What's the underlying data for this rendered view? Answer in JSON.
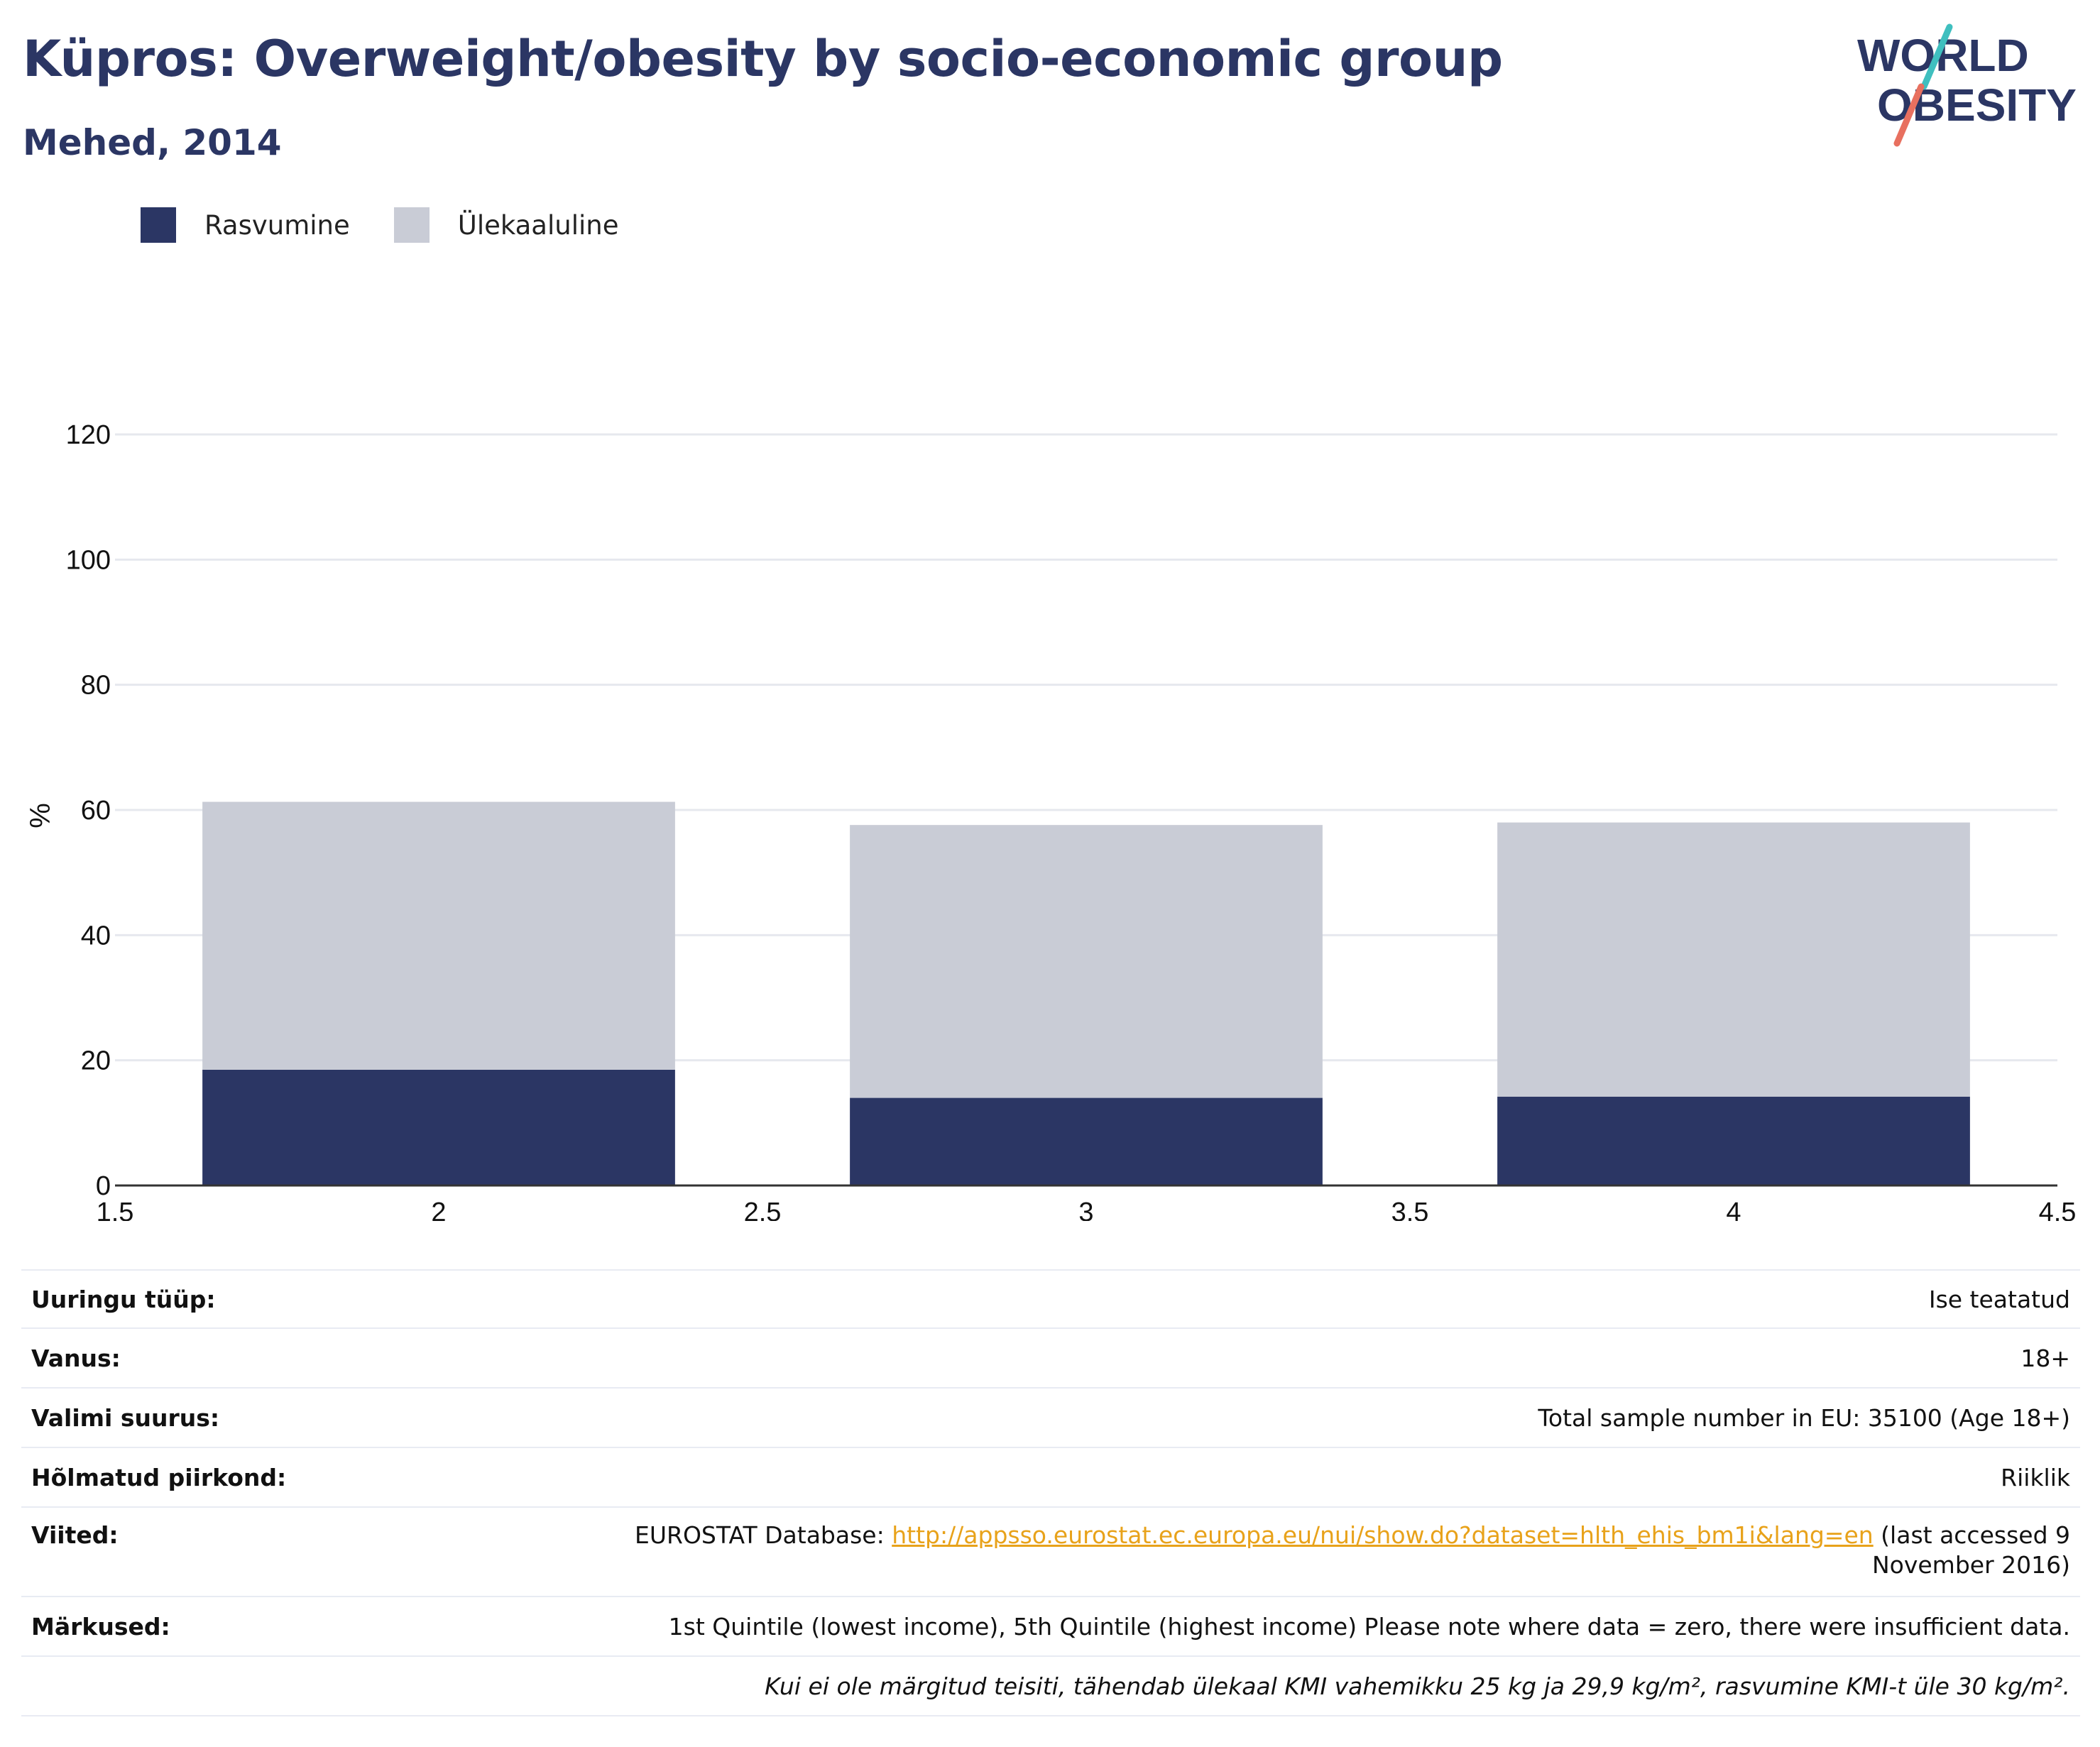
{
  "header": {
    "title": "Küpros: Overweight/obesity by socio-economic group",
    "subtitle": "Mehed, 2014"
  },
  "logo": {
    "line1": "WORLD",
    "line2": "OBESITY"
  },
  "colors": {
    "obesity": "#2b3664",
    "overweight": "#c9ccd6",
    "accent_teal": "#3fbfbf",
    "accent_coral": "#e8705f",
    "link": "#e8a21a"
  },
  "chart_data": {
    "type": "bar",
    "stacked": true,
    "x": [
      2,
      3,
      4
    ],
    "series": [
      {
        "name": "Rasvumine",
        "values": [
          18.5,
          14,
          14.2
        ]
      },
      {
        "name": "Ülekaaluline",
        "values": [
          42.8,
          43.6,
          43.8
        ]
      }
    ],
    "xlim": [
      1.5,
      4.5
    ],
    "ylim": [
      0,
      120
    ],
    "x_ticks": [
      "1.5",
      "2",
      "2.5",
      "3",
      "3.5",
      "4",
      "4.5"
    ],
    "y_ticks": [
      "0",
      "20",
      "40",
      "60",
      "80",
      "100",
      "120"
    ],
    "ylabel": "%",
    "grid": true,
    "legend_position": "top-left"
  },
  "info": {
    "rows": [
      {
        "key": "Uuringu tüüp:",
        "value": "Ise teatatud"
      },
      {
        "key": "Vanus:",
        "value": "18+"
      },
      {
        "key": "Valimi suurus:",
        "value": "Total sample number in EU: 35100 (Age 18+)"
      },
      {
        "key": "Hõlmatud piirkond:",
        "value": "Riiklik"
      }
    ],
    "references": {
      "key": "Viited:",
      "prefix": "EUROSTAT Database: ",
      "link": "http://appsso.eurostat.ec.europa.eu/nui/show.do?dataset=hlth_ehis_bm1i&lang=en",
      "suffix": " (last accessed 9 November 2016)"
    },
    "notes": {
      "key": "Märkused:",
      "value": "1st Quintile (lowest income), 5th Quintile (highest income) Please note where data = zero, there were insufficient data."
    },
    "definition": "Kui ei ole märgitud teisiti, tähendab ülekaal KMI vahemikku 25 kg ja 29,9 kg/m², rasvumine KMI-t üle 30 kg/m²."
  }
}
